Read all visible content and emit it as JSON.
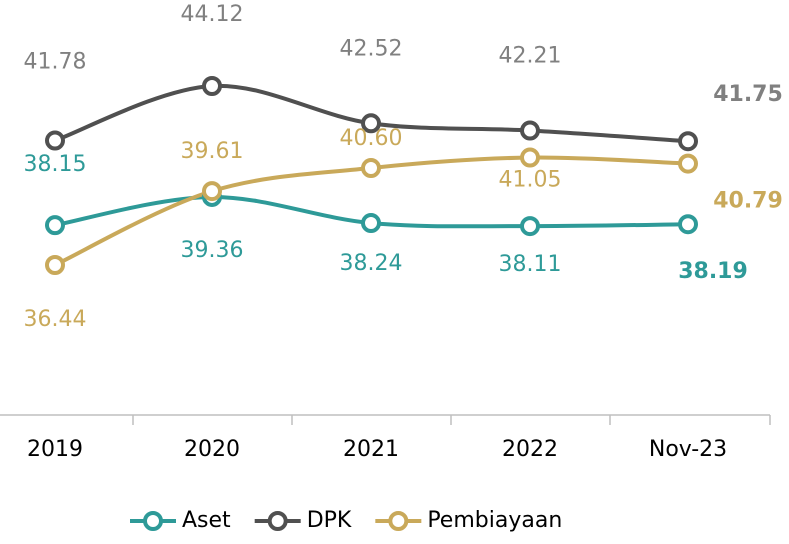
{
  "chart_data": {
    "type": "line",
    "categories": [
      "2019",
      "2020",
      "2021",
      "2022",
      "Nov-23"
    ],
    "series": [
      {
        "name": "Aset",
        "color": "#2e9a98",
        "values": [
          38.15,
          39.36,
          38.24,
          38.11,
          38.19
        ],
        "value_labels": [
          "38.15",
          "39.36",
          "38.24",
          "38.11",
          "38.19"
        ]
      },
      {
        "name": "DPK",
        "color": "#505050",
        "label_color": "#808080",
        "values": [
          41.78,
          44.12,
          42.52,
          42.21,
          41.75
        ],
        "value_labels": [
          "41.78",
          "44.12",
          "42.52",
          "42.21",
          "41.75"
        ]
      },
      {
        "name": "Pembiayaan",
        "color": "#c9a95a",
        "values": [
          36.44,
          39.61,
          40.6,
          41.05,
          40.79
        ],
        "value_labels": [
          "36.44",
          "39.61",
          "40.60",
          "41.05",
          "40.79"
        ]
      }
    ]
  }
}
